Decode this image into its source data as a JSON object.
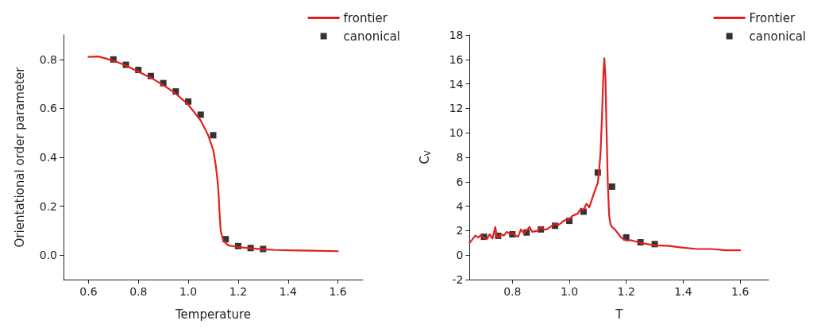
{
  "chart_data": [
    {
      "type": "line",
      "xlabel": "Temperature",
      "ylabel": "Orientational order parameter",
      "xlim": [
        0.5,
        1.7
      ],
      "ylim": [
        -0.1,
        0.9
      ],
      "xticks": [
        0.6,
        0.8,
        {
          "value": 1,
          "label": "1.0"
        },
        1.2,
        1.4,
        1.6
      ],
      "yticks": [
        {
          "value": 0,
          "label": "0.0"
        },
        0.2,
        0.4,
        0.6,
        0.8
      ],
      "grid": false,
      "legend": "top right",
      "series": [
        {
          "name": "frontier",
          "color": "#e41e1e",
          "marker": "none",
          "line_style": "solid",
          "x": [
            0.6,
            0.64,
            0.7,
            0.75,
            0.8,
            0.85,
            0.9,
            0.95,
            1.0,
            1.05,
            1.08,
            1.1,
            1.11,
            1.12,
            1.125,
            1.13,
            1.14,
            1.16,
            1.2,
            1.25,
            1.3,
            1.35,
            1.4,
            1.5,
            1.6
          ],
          "values": [
            0.81,
            0.812,
            0.795,
            0.775,
            0.75,
            0.725,
            0.695,
            0.66,
            0.615,
            0.55,
            0.49,
            0.43,
            0.37,
            0.28,
            0.18,
            0.1,
            0.06,
            0.04,
            0.033,
            0.028,
            0.024,
            0.021,
            0.02,
            0.018,
            0.016
          ]
        },
        {
          "name": "canonical",
          "type": "scatter",
          "color": "#000000",
          "marker": "square",
          "x": [
            0.7,
            0.75,
            0.8,
            0.85,
            0.9,
            0.95,
            1.0,
            1.05,
            1.1,
            1.15,
            1.2,
            1.25,
            1.3
          ],
          "values": [
            0.8,
            0.778,
            0.757,
            0.732,
            0.703,
            0.669,
            0.628,
            0.574,
            0.49,
            0.065,
            0.037,
            0.029,
            0.025
          ]
        }
      ]
    },
    {
      "type": "line",
      "xlabel": "T",
      "ylabel": "C$_{V}$",
      "xlim": [
        0.65,
        1.7
      ],
      "ylim": [
        -2,
        18
      ],
      "xticks": [
        0.8,
        {
          "value": 1,
          "label": "1.0"
        },
        1.2,
        1.4,
        1.6
      ],
      "yticks": [
        -2,
        0,
        2,
        4,
        6,
        8,
        10,
        12,
        14,
        16,
        18
      ],
      "grid": false,
      "legend": "top right",
      "series": [
        {
          "name": "Frontier",
          "color": "#e41e1e",
          "marker": "none",
          "line_style": "solid",
          "x": [
            0.65,
            0.66,
            0.67,
            0.68,
            0.69,
            0.7,
            0.71,
            0.72,
            0.73,
            0.74,
            0.745,
            0.75,
            0.76,
            0.77,
            0.78,
            0.79,
            0.8,
            0.81,
            0.82,
            0.83,
            0.84,
            0.85,
            0.86,
            0.87,
            0.88,
            0.89,
            0.9,
            0.91,
            0.92,
            0.93,
            0.94,
            0.95,
            0.96,
            0.97,
            0.98,
            0.99,
            1.0,
            1.01,
            1.02,
            1.03,
            1.04,
            1.05,
            1.06,
            1.07,
            1.08,
            1.09,
            1.1,
            1.105,
            1.11,
            1.115,
            1.12,
            1.123,
            1.127,
            1.13,
            1.135,
            1.14,
            1.145,
            1.15,
            1.16,
            1.17,
            1.18,
            1.19,
            1.2,
            1.22,
            1.25,
            1.3,
            1.35,
            1.4,
            1.45,
            1.5,
            1.55,
            1.6
          ],
          "values": [
            1.0,
            1.3,
            1.6,
            1.45,
            1.65,
            1.4,
            1.3,
            1.7,
            1.35,
            2.3,
            1.6,
            1.4,
            1.7,
            1.6,
            1.9,
            1.75,
            1.8,
            1.6,
            1.5,
            2.1,
            1.8,
            2.0,
            2.3,
            1.9,
            1.95,
            2.0,
            2.3,
            2.1,
            2.1,
            2.25,
            2.4,
            2.6,
            2.45,
            2.6,
            2.8,
            2.9,
            2.9,
            3.2,
            3.3,
            3.4,
            3.8,
            3.7,
            4.2,
            3.9,
            4.6,
            5.3,
            5.9,
            7.0,
            8.5,
            11.5,
            15.0,
            16.1,
            14.5,
            11.0,
            6.0,
            3.2,
            2.5,
            2.3,
            2.1,
            1.8,
            1.5,
            1.3,
            1.2,
            1.2,
            1.0,
            0.8,
            0.75,
            0.6,
            0.5,
            0.5,
            0.4,
            0.4
          ]
        },
        {
          "name": "canonical",
          "type": "scatter",
          "color": "#000000",
          "marker": "square",
          "x": [
            0.7,
            0.75,
            0.8,
            0.85,
            0.9,
            0.95,
            1.0,
            1.05,
            1.1,
            1.15,
            1.2,
            1.25,
            1.3
          ],
          "values": [
            1.5,
            1.58,
            1.7,
            1.85,
            2.1,
            2.4,
            2.8,
            3.55,
            6.75,
            5.6,
            1.45,
            1.05,
            0.9
          ]
        }
      ]
    }
  ]
}
